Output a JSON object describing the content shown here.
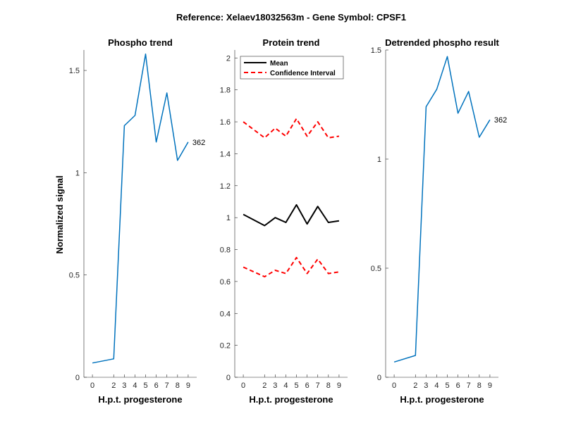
{
  "figure": {
    "title": "Reference:  Xelaev18032563m - Gene Symbol:  CPSF1",
    "ylabel": "Normalized signal"
  },
  "colors": {
    "phospho": "#0072BD",
    "mean": "#000000",
    "ci": "#FF0000",
    "axis": "#262626"
  },
  "chart_data": [
    {
      "type": "line",
      "title": "Phospho trend",
      "xlabel": "H.p.t. progesterone",
      "ylabel": "Normalized signal",
      "x": [
        0,
        2,
        3,
        4,
        5,
        6,
        7,
        8,
        9
      ],
      "xlim": [
        -0.8,
        9.8
      ],
      "ylim": [
        0,
        1.6
      ],
      "yticks": [
        0,
        0.5,
        1,
        1.5
      ],
      "ytick_labels": [
        "0",
        "0.5",
        "1",
        "1.5"
      ],
      "series": [
        {
          "values": [
            0.07,
            0.09,
            1.23,
            1.28,
            1.58,
            1.15,
            1.39,
            1.06,
            1.15
          ]
        }
      ],
      "annotation": {
        "text": "362",
        "x": 9,
        "y": 1.15
      }
    },
    {
      "type": "line",
      "title": "Protein trend",
      "xlabel": "H.p.t. progesterone",
      "x": [
        0,
        2,
        3,
        4,
        5,
        6,
        7,
        8,
        9
      ],
      "xlim": [
        -0.8,
        9.8
      ],
      "ylim": [
        0,
        2.05
      ],
      "yticks": [
        0,
        0.2,
        0.4,
        0.6,
        0.8,
        1,
        1.2,
        1.4,
        1.6,
        1.8,
        2
      ],
      "ytick_labels": [
        "0",
        "0.2",
        "0.4",
        "0.6",
        "0.8",
        "1",
        "1.2",
        "1.4",
        "1.6",
        "1.8",
        "2"
      ],
      "legend": "top-left",
      "series": [
        {
          "name": "Mean",
          "values": [
            1.02,
            0.95,
            1.0,
            0.97,
            1.08,
            0.96,
            1.07,
            0.97,
            0.98
          ]
        },
        {
          "name": "Confidence Interval",
          "values": [
            1.6,
            1.5,
            1.56,
            1.51,
            1.62,
            1.51,
            1.6,
            1.5,
            1.51
          ]
        },
        {
          "values": [
            0.69,
            0.63,
            0.67,
            0.65,
            0.75,
            0.65,
            0.74,
            0.65,
            0.66
          ]
        }
      ]
    },
    {
      "type": "line",
      "title": "Detrended phospho result",
      "xlabel": "H.p.t. progesterone",
      "x": [
        0,
        2,
        3,
        4,
        5,
        6,
        7,
        8,
        9
      ],
      "xlim": [
        -0.8,
        9.8
      ],
      "ylim": [
        0,
        1.5
      ],
      "yticks": [
        0,
        0.5,
        1,
        1.5
      ],
      "ytick_labels": [
        "0",
        "0.5",
        "1",
        "1.5"
      ],
      "series": [
        {
          "values": [
            0.07,
            0.1,
            1.24,
            1.32,
            1.47,
            1.21,
            1.31,
            1.1,
            1.18
          ]
        }
      ],
      "annotation": {
        "text": "362",
        "x": 9,
        "y": 1.18
      }
    }
  ]
}
